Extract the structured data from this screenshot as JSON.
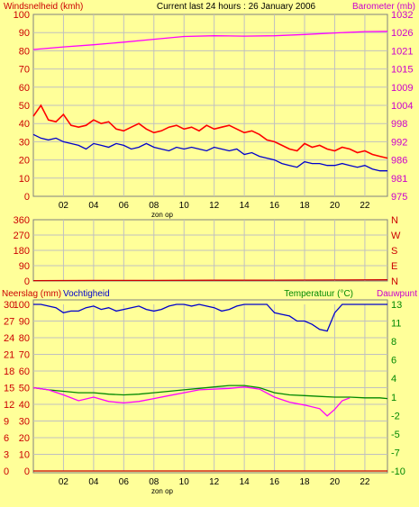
{
  "header": {
    "left_label": "Windsnelheid (kmh)",
    "title": "Current last 24 hours : 26 January 2006",
    "right_label": "Barometer (mb)"
  },
  "hours": [
    "02",
    "04",
    "06",
    "08",
    "10",
    "12",
    "14",
    "16",
    "18",
    "20",
    "22"
  ],
  "sunrise_label": "zon op",
  "colors": {
    "background": "#ffff99",
    "grid": "#c0c0c0",
    "axis": "#808080",
    "wind_gust": "#ff0000",
    "wind_avg": "#0000cc",
    "barometer": "#ff00ff",
    "direction": "#cc0000",
    "humidity": "#0000cc",
    "temperature": "#008800",
    "dewpoint": "#ff00ff",
    "rain": "#cc0000",
    "left_text": "#cc0000",
    "right_text": "#cc00cc"
  },
  "chart_data": [
    {
      "type": "line",
      "x_unit": "hour",
      "x_range": [
        0,
        23.5
      ],
      "y_left": {
        "label": "Windsnelheid (kmh)",
        "ticks": [
          0,
          10,
          20,
          30,
          40,
          50,
          60,
          70,
          80,
          90,
          100
        ],
        "ylim": [
          0,
          100
        ]
      },
      "y_right": {
        "label": "Barometer (mb)",
        "ticks": [
          975,
          981,
          986,
          992,
          998,
          1004,
          1009,
          1015,
          1021,
          1026,
          1032
        ],
        "ylim": [
          975,
          1032
        ]
      },
      "series": [
        {
          "key": "wind_gust",
          "axis": "left",
          "x": [
            0,
            0.5,
            1,
            1.5,
            2,
            2.5,
            3,
            3.5,
            4,
            4.5,
            5,
            5.5,
            6,
            6.5,
            7,
            7.5,
            8,
            8.5,
            9,
            9.5,
            10,
            10.5,
            11,
            11.5,
            12,
            12.5,
            13,
            13.5,
            14,
            14.5,
            15,
            15.5,
            16,
            16.5,
            17,
            17.5,
            18,
            18.5,
            19,
            19.5,
            20,
            20.5,
            21,
            21.5,
            22,
            22.5,
            23,
            23.5
          ],
          "y": [
            44,
            50,
            42,
            41,
            45,
            39,
            38,
            39,
            42,
            40,
            41,
            37,
            36,
            38,
            40,
            37,
            35,
            36,
            38,
            39,
            37,
            38,
            36,
            39,
            37,
            38,
            39,
            37,
            35,
            36,
            34,
            31,
            30,
            28,
            26,
            25,
            29,
            27,
            28,
            26,
            25,
            27,
            26,
            24,
            25,
            23,
            22,
            21
          ]
        },
        {
          "key": "wind_avg",
          "axis": "left",
          "x": [
            0,
            0.5,
            1,
            1.5,
            2,
            2.5,
            3,
            3.5,
            4,
            4.5,
            5,
            5.5,
            6,
            6.5,
            7,
            7.5,
            8,
            8.5,
            9,
            9.5,
            10,
            10.5,
            11,
            11.5,
            12,
            12.5,
            13,
            13.5,
            14,
            14.5,
            15,
            15.5,
            16,
            16.5,
            17,
            17.5,
            18,
            18.5,
            19,
            19.5,
            20,
            20.5,
            21,
            21.5,
            22,
            22.5,
            23,
            23.5
          ],
          "y": [
            34,
            32,
            31,
            32,
            30,
            29,
            28,
            26,
            29,
            28,
            27,
            29,
            28,
            26,
            27,
            29,
            27,
            26,
            25,
            27,
            26,
            27,
            26,
            25,
            27,
            26,
            25,
            26,
            23,
            24,
            22,
            21,
            20,
            18,
            17,
            16,
            19,
            18,
            18,
            17,
            17,
            18,
            17,
            16,
            17,
            15,
            14,
            14
          ]
        },
        {
          "key": "barometer",
          "axis": "right",
          "x": [
            0,
            2,
            4,
            6,
            8,
            10,
            12,
            14,
            16,
            18,
            20,
            22,
            23.5
          ],
          "y": [
            1021,
            1021.8,
            1022.5,
            1023.3,
            1024.2,
            1025.1,
            1025.3,
            1025.2,
            1025.3,
            1025.7,
            1026.2,
            1026.6,
            1026.7
          ]
        }
      ]
    },
    {
      "type": "line",
      "x_unit": "hour",
      "x_range": [
        0,
        23.5
      ],
      "y_left": {
        "ticks": [
          0,
          90,
          180,
          270,
          360
        ],
        "ylim": [
          0,
          360
        ]
      },
      "y_right": {
        "ticks": [
          "N",
          "E",
          "S",
          "W",
          "N"
        ]
      },
      "series": [
        {
          "key": "wind_direction",
          "axis": "left",
          "x": [
            0,
            4,
            8,
            12,
            16,
            20,
            23.5
          ],
          "y": [
            2,
            3,
            3,
            4,
            5,
            6,
            7
          ]
        }
      ]
    },
    {
      "type": "line",
      "x_unit": "hour",
      "x_range": [
        0,
        23.5
      ],
      "y_left": {
        "label_a": "Neerslag (mm)",
        "label_b": "Vochtigheid",
        "ticks_outer": [
          0,
          3,
          6,
          9,
          12,
          15,
          18,
          21,
          24,
          27,
          30
        ],
        "ticks_inner": [
          0,
          10,
          20,
          30,
          40,
          50,
          60,
          70,
          80,
          90,
          100
        ],
        "ylim": [
          0,
          100
        ]
      },
      "y_right": {
        "label_a": "Temperatuur (°C)",
        "label_b": "Dauwpunt",
        "ticks": [
          -10,
          -7,
          -5,
          -2,
          1,
          4,
          6,
          8,
          11,
          13
        ],
        "ylim": [
          -10,
          13
        ]
      },
      "series": [
        {
          "key": "humidity",
          "axis": "left",
          "x": [
            0,
            0.5,
            1,
            1.5,
            2,
            2.5,
            3,
            3.5,
            4,
            4.5,
            5,
            5.5,
            6,
            6.5,
            7,
            7.5,
            8,
            8.5,
            9,
            9.5,
            10,
            10.5,
            11,
            11.5,
            12,
            12.5,
            13,
            13.5,
            14,
            14.5,
            15,
            15.5,
            16,
            16.5,
            17,
            17.5,
            18,
            18.5,
            19,
            19.5,
            20,
            20.5,
            21,
            21.5,
            22,
            22.5,
            23,
            23.5
          ],
          "y": [
            100,
            100,
            99,
            98,
            95,
            96,
            96,
            98,
            99,
            97,
            98,
            96,
            97,
            98,
            99,
            97,
            96,
            97,
            99,
            100,
            100,
            99,
            100,
            99,
            98,
            96,
            97,
            99,
            100,
            100,
            100,
            100,
            95,
            94,
            93,
            90,
            90,
            88,
            85,
            84,
            95,
            100,
            100,
            100,
            100,
            100,
            100,
            100
          ]
        },
        {
          "key": "temperature",
          "axis": "right",
          "x": [
            0,
            1,
            2,
            3,
            4,
            5,
            6,
            7,
            8,
            9,
            10,
            11,
            12,
            13,
            14,
            15,
            16,
            17,
            18,
            19,
            20,
            21,
            22,
            23,
            23.5
          ],
          "y": [
            1.5,
            1.2,
            1.0,
            0.8,
            0.8,
            0.6,
            0.5,
            0.6,
            0.8,
            1.0,
            1.2,
            1.4,
            1.6,
            1.8,
            1.8,
            1.5,
            0.8,
            0.5,
            0.4,
            0.3,
            0.2,
            0.2,
            0.1,
            0.1,
            0.0
          ]
        },
        {
          "key": "dewpoint",
          "axis": "right",
          "x": [
            0,
            1,
            2,
            3,
            4,
            5,
            6,
            7,
            8,
            9,
            10,
            11,
            12,
            13,
            14,
            15,
            16,
            17,
            18,
            19,
            19.5,
            20,
            20.5,
            21
          ],
          "y": [
            1.5,
            1.2,
            0.5,
            -0.3,
            0.2,
            -0.4,
            -0.6,
            -0.4,
            0.0,
            0.4,
            0.8,
            1.2,
            1.3,
            1.4,
            1.6,
            1.3,
            0.2,
            -0.5,
            -0.9,
            -1.4,
            -2.4,
            -1.5,
            -0.3,
            0.1
          ]
        },
        {
          "key": "rain",
          "axis": "left",
          "x": [
            0,
            23.5
          ],
          "y": [
            0,
            0
          ]
        }
      ]
    }
  ]
}
